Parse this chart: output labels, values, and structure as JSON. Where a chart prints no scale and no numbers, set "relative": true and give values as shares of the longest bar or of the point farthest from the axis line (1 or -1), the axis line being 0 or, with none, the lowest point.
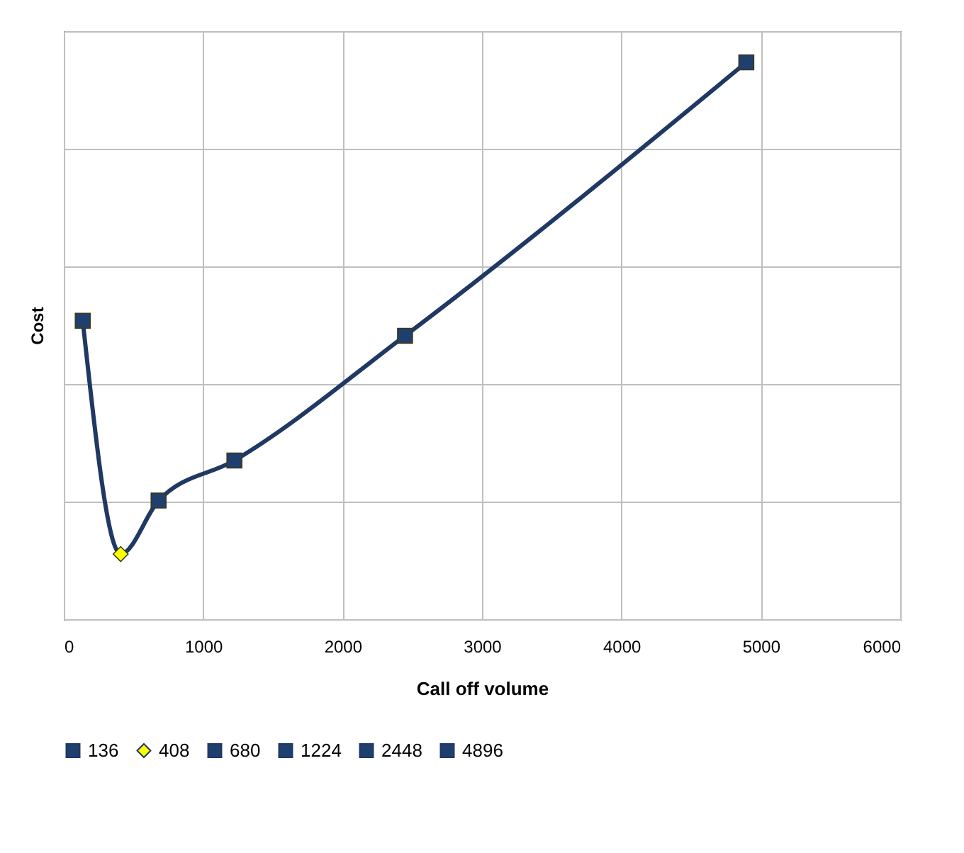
{
  "chart_data": {
    "type": "line",
    "xlabel": "Call off volume",
    "ylabel": "Cost",
    "relative": true,
    "xlim": [
      0,
      6000
    ],
    "xticks": [
      0,
      1000,
      2000,
      3000,
      4000,
      5000,
      6000
    ],
    "grid": true,
    "legend": "bottom",
    "line_style": "solid",
    "series": [
      {
        "color": "#1f3864",
        "x": [
          136,
          408,
          680,
          1224,
          2448,
          4896
        ],
        "values": [
          0.536,
          0.117,
          0.213,
          0.285,
          0.509,
          1
        ],
        "marker": "none"
      },
      {
        "type": "scatter",
        "name": "136",
        "color": "#1f3f6e",
        "marker": "square",
        "x": [
          136
        ],
        "values": [
          0.536
        ]
      },
      {
        "type": "scatter",
        "name": "408",
        "color": "#ffff00",
        "marker": "diamond",
        "x": [
          408
        ],
        "values": [
          0.117
        ]
      },
      {
        "type": "scatter",
        "name": "680",
        "color": "#1f3f6e",
        "marker": "square",
        "x": [
          680
        ],
        "values": [
          0.213
        ]
      },
      {
        "type": "scatter",
        "name": "1224",
        "color": "#1f3f6e",
        "marker": "square",
        "x": [
          1224
        ],
        "values": [
          0.285
        ]
      },
      {
        "type": "scatter",
        "name": "2448",
        "color": "#1f3f6e",
        "marker": "square",
        "x": [
          2448
        ],
        "values": [
          0.509
        ]
      },
      {
        "type": "scatter",
        "name": "4896",
        "color": "#1f3f6e",
        "marker": "square",
        "x": [
          4896
        ],
        "values": [
          1
        ]
      }
    ]
  }
}
